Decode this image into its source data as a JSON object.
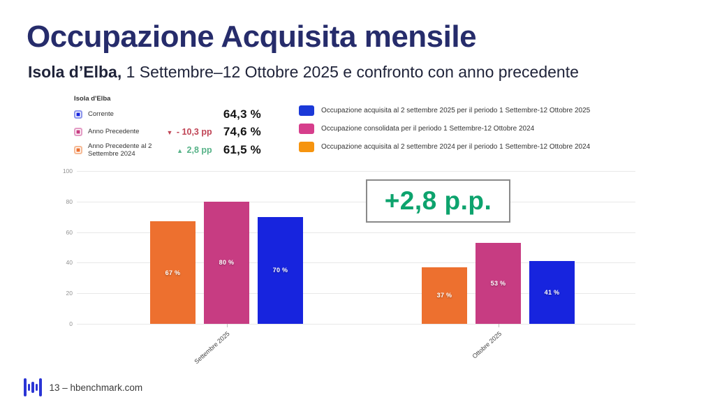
{
  "header": {
    "title": "Occupazione Acquisita mensile",
    "subtitle_bold": "Isola d’Elba,",
    "subtitle_rest": " 1 Settembre–12 Ottobre 2025 e confronto con anno precedente"
  },
  "stats_panel": {
    "heading": "Isola d'Elba",
    "rows": [
      {
        "label": "Corrente",
        "value": "64,3 %",
        "delta": "",
        "delta_icon": "",
        "delta_color": "#333333",
        "color": "#1724DE",
        "border": "#8C95EC"
      },
      {
        "label": "Anno Precedente",
        "value": "74,6 %",
        "delta": "- 10,3 pp",
        "delta_icon": "▼",
        "delta_color": "#C04455",
        "color": "#C73C82",
        "border": "#E39BC4"
      },
      {
        "label": "Anno Precedente al 2 Settembre 2024",
        "value": "61,5 %",
        "delta": "2,8 pp",
        "delta_icon": "▲",
        "delta_color": "#56B287",
        "color": "#ED702F",
        "border": "#F5BA95"
      }
    ]
  },
  "legend": {
    "items": [
      {
        "label": "Occupazione acquisita al 2 settembre 2025 per il periodo 1 Settembre-12 Ottobre 2025",
        "color": "#1B39D8"
      },
      {
        "label": "Occupazione consolidata per il periodo 1 Settembre-12 Ottobre 2024",
        "color": "#D63E8C"
      },
      {
        "label": "Occupazione acquisita al 2 settembre 2024 per il periodo 1 Settembre-12 Ottobre 2024",
        "color": "#F6940F"
      }
    ]
  },
  "chart_data": {
    "type": "bar",
    "categories": [
      "Settembre 2025",
      "Ottobre 2025"
    ],
    "series": [
      {
        "name": "Occupazione acquisita al 2 settembre 2024 per il periodo 1 Settembre-12 Ottobre 2024",
        "color": "#ED702F",
        "values": [
          67,
          37
        ]
      },
      {
        "name": "Occupazione consolidata per il periodo 1 Settembre-12 Ottobre 2024",
        "color": "#C73C82",
        "values": [
          80,
          53
        ]
      },
      {
        "name": "Occupazione acquisita al 2 settembre 2025 per il periodo 1 Settembre-12 Ottobre 2025",
        "color": "#1724DE",
        "values": [
          70,
          41
        ]
      }
    ],
    "bar_labels": [
      [
        "67 %",
        "80 %",
        "70 %"
      ],
      [
        "37 %",
        "53 %",
        "41 %"
      ]
    ],
    "title": "Occupazione Acquisita mensile",
    "xlabel": "",
    "ylabel": "",
    "ylim": [
      0,
      100
    ],
    "yticks": [
      0,
      20,
      40,
      60,
      80,
      100
    ],
    "grid": true,
    "legend_position": "top-right",
    "annotation": "+2,8 p.p.",
    "annotation_color": "#0DA36D"
  },
  "footer": {
    "text": "13 – hbenchmark.com"
  },
  "colors": {
    "title_navy": "#262C6B",
    "logo_blue": "#2B35D5"
  }
}
